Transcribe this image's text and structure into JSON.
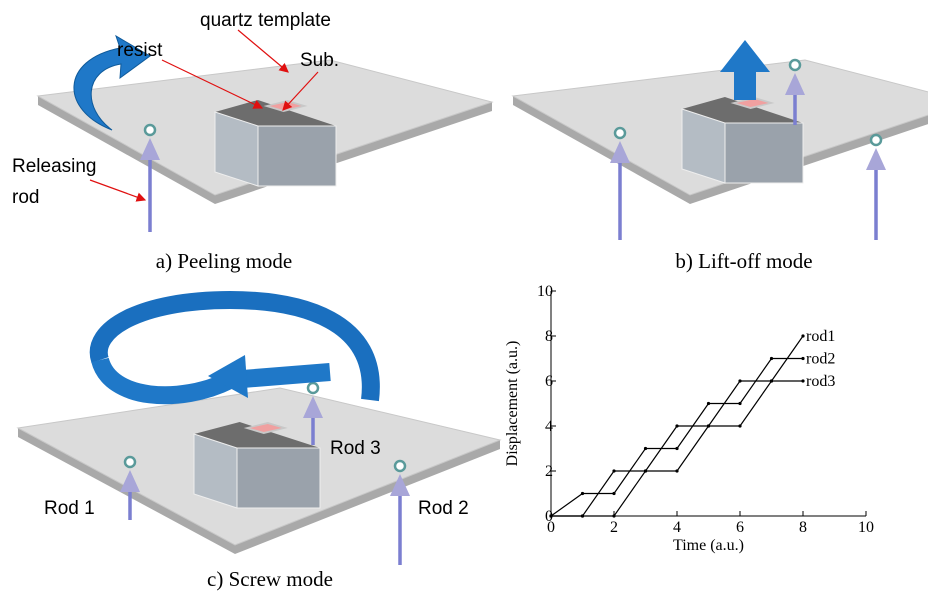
{
  "panels": {
    "a": {
      "caption": "a) Peeling mode",
      "template_label": "quartz template",
      "resist_label": "resist",
      "sub_label": "Sub.",
      "rod_label_line1": "Releasing",
      "rod_label_line2": "rod"
    },
    "b": {
      "caption": "b) Lift-off mode"
    },
    "c": {
      "caption": "c) Screw mode",
      "rod1": "Rod 1",
      "rod2": "Rod 2",
      "rod3": "Rod 3"
    }
  },
  "chart_data": {
    "type": "line",
    "xlabel": "Time (a.u.)",
    "ylabel": "Displacement (a.u.)",
    "x": [
      0,
      1,
      2,
      3,
      4,
      5,
      6,
      7,
      8
    ],
    "series": [
      {
        "name": "rod1",
        "color": "#000000",
        "values": [
          0,
          0,
          2,
          2,
          4,
          4,
          6,
          6,
          8
        ]
      },
      {
        "name": "rod2",
        "color": "#000000",
        "values": [
          0,
          1,
          1,
          3,
          3,
          5,
          5,
          7,
          7
        ]
      },
      {
        "name": "rod3",
        "color": "#000000",
        "values": [
          0,
          0,
          0,
          2,
          2,
          4,
          4,
          6,
          6
        ]
      }
    ],
    "xlim": [
      0,
      10
    ],
    "ylim": [
      0,
      10
    ],
    "xticks": [
      0,
      2,
      4,
      6,
      8,
      10
    ],
    "yticks": [
      0,
      2,
      4,
      6,
      8,
      10
    ]
  }
}
